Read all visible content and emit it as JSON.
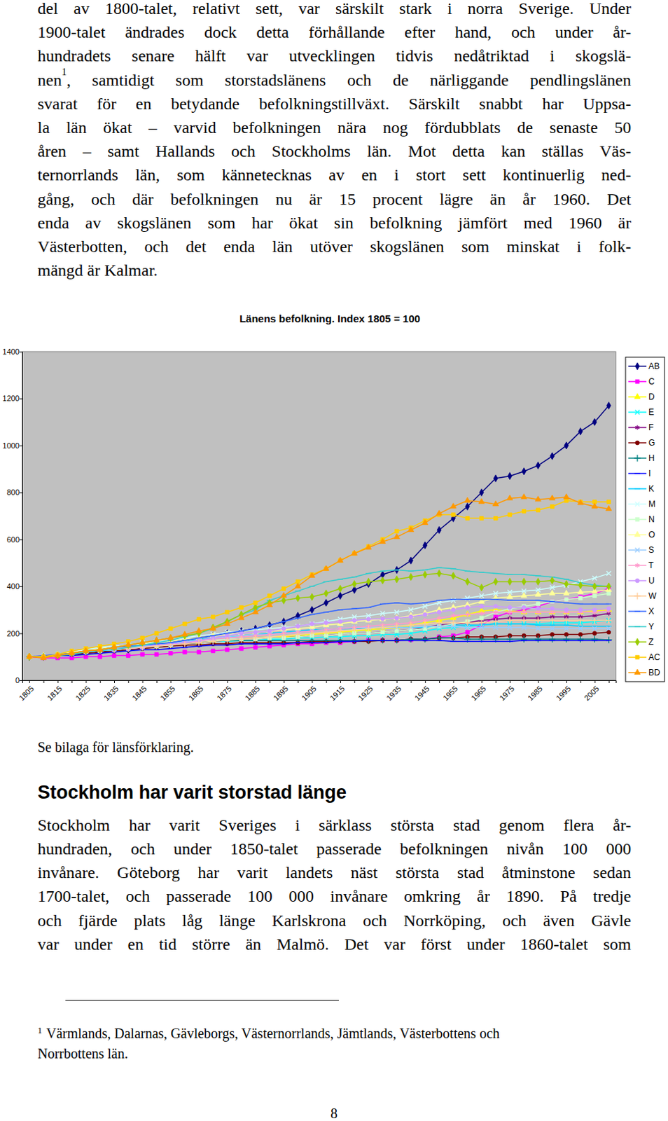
{
  "document": {
    "intro_lines": [
      "del av 1800-talet, relativt sett, var särskilt stark i norra Sverige. Under",
      "1900-talet ändrades dock detta förhållande efter hand, och under år-",
      "hundradets senare hälft var utvecklingen tidvis nedåtriktad i skogslä-",
      {
        "before": "nen",
        "sup": "1",
        "after": ", samtidigt som storstadslänens och de närliggande pendlingslänen"
      },
      "svarat för en betydande befolkningstillväxt. Särskilt snabbt har Uppsa-",
      "la län ökat – varvid befolkningen nära nog fördubblats de senaste 50",
      "åren – samt Hallands och Stockholms län. Mot detta kan ställas Väs-",
      "ternorrlands län, som kännetecknas av en i stort sett kontinuerlig ned-",
      "gång, och där befolkningen nu är 15 procent lägre än år 1960. Det",
      "enda av skogslänen som har ökat sin befolkning jämfört med 1960 är",
      "Västerbotten, och det enda län utöver skogslänen som minskat i folk-",
      "mängd är Kalmar."
    ],
    "caption": "Se bilaga för länsförklaring.",
    "heading": "Stockholm har varit storstad länge",
    "body_lines": [
      "Stockholm har varit Sveriges i särklass största stad genom flera år-",
      "hundraden, och under 1850-talet passerade befolkningen nivån 100 000",
      "invånare. Göteborg har varit landets näst största stad åtminstone sedan",
      "1700-talet, och passerade 100 000 invånare omkring år 1890. På tredje",
      "och fjärde plats låg länge Karlskrona och Norrköping, och även Gävle",
      "var under en tid större än Malmö. Det var först under 1860-talet som"
    ],
    "footnote": {
      "marker": "1",
      "lines": [
        "Värmlands, Dalarnas, Gävleborgs, Västernorrlands, Jämtlands, Västerbottens och",
        "Norrbottens län."
      ]
    },
    "page_number": "8"
  },
  "chart_data": {
    "type": "line",
    "title": "Länens befolkning. Index 1805 = 100",
    "categories": [
      "1805",
      null,
      "1815",
      null,
      "1825",
      null,
      "1835",
      null,
      "1845",
      null,
      "1855",
      null,
      "1865",
      null,
      "1875",
      null,
      "1885",
      null,
      "1895",
      null,
      "1905",
      null,
      "1915",
      null,
      "1925",
      null,
      "1935",
      null,
      "1945",
      null,
      "1955",
      null,
      "1965",
      null,
      "1975",
      null,
      "1985",
      null,
      "1995",
      null,
      "2005",
      null
    ],
    "ylim": [
      0,
      1400
    ],
    "yticks": [
      0,
      200,
      400,
      600,
      800,
      1000,
      1200,
      1400
    ],
    "grid": false,
    "legend": "right",
    "series": [
      {
        "name": "AB",
        "color": "#000080",
        "marker": "diamond",
        "values": [
          100,
          100,
          105,
          110,
          115,
          120,
          125,
          130,
          140,
          150,
          160,
          170,
          180,
          190,
          200,
          210,
          220,
          235,
          250,
          275,
          300,
          330,
          360,
          385,
          410,
          450,
          470,
          510,
          575,
          640,
          690,
          740,
          800,
          860,
          870,
          890,
          915,
          955,
          1000,
          1060,
          1100,
          1170
        ]
      },
      {
        "name": "C",
        "color": "#FF00FF",
        "marker": "square",
        "values": [
          100,
          95,
          95,
          95,
          100,
          100,
          105,
          105,
          110,
          110,
          115,
          120,
          120,
          125,
          130,
          135,
          140,
          145,
          150,
          155,
          155,
          160,
          160,
          165,
          170,
          170,
          170,
          172,
          175,
          185,
          190,
          205,
          235,
          270,
          290,
          300,
          315,
          335,
          345,
          355,
          370,
          390
        ]
      },
      {
        "name": "D",
        "color": "#FFFF00",
        "marker": "triangle",
        "values": [
          100,
          105,
          110,
          115,
          120,
          125,
          130,
          135,
          140,
          145,
          150,
          155,
          160,
          165,
          170,
          175,
          180,
          185,
          185,
          190,
          195,
          200,
          205,
          210,
          215,
          220,
          225,
          235,
          245,
          255,
          265,
          280,
          295,
          300,
          295,
          290,
          290,
          290,
          290,
          290,
          295,
          300
        ]
      },
      {
        "name": "E",
        "color": "#00FFFF",
        "marker": "x",
        "values": [
          100,
          105,
          110,
          115,
          120,
          125,
          130,
          135,
          140,
          145,
          150,
          155,
          160,
          165,
          165,
          170,
          170,
          175,
          175,
          180,
          180,
          185,
          185,
          190,
          190,
          195,
          195,
          200,
          210,
          220,
          225,
          230,
          235,
          240,
          240,
          240,
          240,
          245,
          245,
          245,
          250,
          255
        ]
      },
      {
        "name": "F",
        "color": "#800080",
        "marker": "star",
        "values": [
          100,
          105,
          110,
          115,
          120,
          125,
          130,
          135,
          140,
          145,
          150,
          155,
          160,
          165,
          170,
          175,
          175,
          180,
          180,
          185,
          190,
          190,
          195,
          200,
          200,
          205,
          210,
          215,
          225,
          235,
          240,
          245,
          255,
          260,
          265,
          265,
          265,
          270,
          270,
          270,
          275,
          285
        ]
      },
      {
        "name": "G",
        "color": "#800000",
        "marker": "circle",
        "values": [
          100,
          105,
          105,
          110,
          115,
          120,
          125,
          130,
          135,
          140,
          145,
          150,
          150,
          155,
          155,
          160,
          160,
          160,
          160,
          160,
          165,
          165,
          165,
          165,
          165,
          170,
          170,
          175,
          175,
          180,
          180,
          185,
          185,
          185,
          190,
          190,
          190,
          195,
          195,
          195,
          200,
          205
        ]
      },
      {
        "name": "H",
        "color": "#008080",
        "marker": "plus",
        "values": [
          100,
          105,
          110,
          115,
          120,
          125,
          130,
          135,
          140,
          145,
          150,
          155,
          160,
          165,
          170,
          170,
          170,
          170,
          170,
          170,
          170,
          170,
          170,
          170,
          170,
          170,
          170,
          175,
          175,
          180,
          180,
          175,
          175,
          175,
          175,
          175,
          175,
          175,
          175,
          175,
          175,
          172
        ]
      },
      {
        "name": "I",
        "color": "#0000FF",
        "marker": "dash",
        "values": [
          100,
          100,
          105,
          105,
          110,
          115,
          120,
          125,
          130,
          130,
          135,
          140,
          145,
          150,
          150,
          155,
          155,
          155,
          155,
          160,
          160,
          160,
          165,
          165,
          170,
          170,
          170,
          170,
          170,
          170,
          165,
          165,
          165,
          165,
          165,
          170,
          170,
          170,
          170,
          170,
          170,
          170
        ]
      },
      {
        "name": "K",
        "color": "#00CCFF",
        "marker": "dash",
        "values": [
          100,
          105,
          110,
          115,
          120,
          125,
          130,
          135,
          145,
          150,
          160,
          165,
          175,
          180,
          185,
          190,
          195,
          200,
          205,
          210,
          215,
          215,
          220,
          220,
          220,
          225,
          225,
          225,
          225,
          230,
          235,
          235,
          235,
          240,
          240,
          240,
          235,
          235,
          235,
          230,
          230,
          230
        ]
      },
      {
        "name": "M",
        "color": "#CCFFFF",
        "marker": "x",
        "values": [
          100,
          105,
          110,
          120,
          130,
          140,
          145,
          150,
          160,
          165,
          170,
          180,
          190,
          195,
          205,
          210,
          215,
          220,
          225,
          230,
          240,
          250,
          260,
          270,
          275,
          285,
          290,
          300,
          315,
          330,
          340,
          350,
          360,
          370,
          375,
          380,
          385,
          395,
          405,
          420,
          435,
          455
        ]
      },
      {
        "name": "N",
        "color": "#CCFFCC",
        "marker": "square",
        "values": [
          100,
          105,
          110,
          115,
          120,
          125,
          130,
          135,
          140,
          145,
          150,
          160,
          165,
          170,
          175,
          175,
          175,
          180,
          180,
          185,
          190,
          190,
          195,
          200,
          200,
          205,
          210,
          215,
          220,
          230,
          240,
          250,
          265,
          290,
          305,
          315,
          325,
          335,
          345,
          350,
          360,
          370
        ]
      },
      {
        "name": "O",
        "color": "#FFFF99",
        "marker": "triangle",
        "values": [
          100,
          105,
          110,
          120,
          125,
          135,
          140,
          150,
          155,
          160,
          165,
          175,
          180,
          190,
          195,
          200,
          205,
          210,
          215,
          220,
          225,
          235,
          240,
          250,
          255,
          260,
          265,
          275,
          285,
          300,
          310,
          320,
          335,
          350,
          355,
          360,
          365,
          370,
          370,
          375,
          378,
          385
        ]
      },
      {
        "name": "S",
        "color": "#99CCFF",
        "marker": "x",
        "values": [
          100,
          105,
          110,
          115,
          125,
          130,
          135,
          140,
          145,
          150,
          155,
          165,
          170,
          180,
          185,
          190,
          195,
          195,
          200,
          205,
          210,
          215,
          220,
          225,
          225,
          225,
          225,
          225,
          230,
          230,
          230,
          225,
          225,
          225,
          225,
          225,
          220,
          220,
          220,
          220,
          220,
          220
        ]
      },
      {
        "name": "T",
        "color": "#FF99CC",
        "marker": "star",
        "values": [
          100,
          105,
          110,
          115,
          120,
          125,
          130,
          135,
          140,
          150,
          155,
          160,
          165,
          175,
          180,
          185,
          190,
          195,
          200,
          205,
          210,
          215,
          220,
          225,
          230,
          235,
          240,
          245,
          255,
          265,
          275,
          280,
          285,
          290,
          290,
          290,
          290,
          290,
          290,
          290,
          290,
          295
        ]
      },
      {
        "name": "U",
        "color": "#CC99FF",
        "marker": "circle",
        "values": [
          100,
          105,
          110,
          115,
          120,
          125,
          130,
          135,
          140,
          150,
          155,
          160,
          170,
          180,
          190,
          200,
          205,
          210,
          220,
          230,
          240,
          245,
          250,
          255,
          260,
          262,
          265,
          270,
          280,
          290,
          300,
          310,
          315,
          315,
          310,
          310,
          305,
          305,
          300,
          300,
          300,
          305
        ]
      },
      {
        "name": "W",
        "color": "#FFCC99",
        "marker": "plus",
        "values": [
          100,
          105,
          110,
          115,
          120,
          125,
          130,
          135,
          140,
          145,
          150,
          155,
          160,
          165,
          170,
          175,
          180,
          185,
          190,
          195,
          200,
          205,
          210,
          215,
          220,
          225,
          230,
          235,
          240,
          245,
          245,
          245,
          245,
          250,
          255,
          255,
          255,
          255,
          255,
          255,
          255,
          255
        ]
      },
      {
        "name": "X",
        "color": "#3366FF",
        "marker": "dash",
        "values": [
          100,
          105,
          110,
          115,
          125,
          130,
          140,
          145,
          150,
          155,
          160,
          170,
          180,
          190,
          200,
          210,
          220,
          235,
          250,
          265,
          280,
          290,
          300,
          305,
          310,
          325,
          330,
          325,
          330,
          340,
          345,
          345,
          345,
          345,
          340,
          340,
          340,
          335,
          330,
          325,
          325,
          325
        ]
      },
      {
        "name": "Y",
        "color": "#33CCCC",
        "marker": "dash",
        "values": [
          100,
          100,
          105,
          110,
          120,
          125,
          130,
          140,
          150,
          160,
          170,
          185,
          200,
          220,
          250,
          280,
          300,
          340,
          360,
          380,
          400,
          420,
          430,
          440,
          455,
          465,
          470,
          465,
          470,
          480,
          475,
          465,
          460,
          455,
          450,
          450,
          445,
          440,
          430,
          415,
          405,
          400
        ]
      },
      {
        "name": "Z",
        "color": "#99CC00",
        "marker": "diamond",
        "values": [
          100,
          100,
          105,
          115,
          125,
          130,
          140,
          150,
          160,
          170,
          180,
          190,
          200,
          225,
          250,
          280,
          310,
          330,
          340,
          350,
          355,
          370,
          390,
          410,
          420,
          425,
          430,
          440,
          450,
          455,
          445,
          420,
          395,
          420,
          420,
          420,
          420,
          425,
          410,
          405,
          400,
          400
        ]
      },
      {
        "name": "AC",
        "color": "#FFCC00",
        "marker": "square",
        "values": [
          100,
          100,
          110,
          125,
          135,
          145,
          155,
          165,
          180,
          200,
          220,
          240,
          260,
          270,
          290,
          310,
          330,
          360,
          390,
          420,
          450,
          475,
          510,
          540,
          570,
          600,
          635,
          650,
          680,
          705,
          705,
          690,
          690,
          690,
          705,
          720,
          725,
          740,
          765,
          760,
          760,
          760
        ]
      },
      {
        "name": "BD",
        "color": "#FF9900",
        "marker": "triangle",
        "values": [
          100,
          95,
          105,
          115,
          125,
          130,
          140,
          150,
          160,
          170,
          180,
          195,
          210,
          220,
          240,
          265,
          290,
          320,
          360,
          400,
          445,
          475,
          510,
          540,
          565,
          590,
          610,
          640,
          670,
          710,
          740,
          765,
          760,
          750,
          775,
          780,
          770,
          775,
          780,
          755,
          740,
          730
        ]
      }
    ]
  }
}
